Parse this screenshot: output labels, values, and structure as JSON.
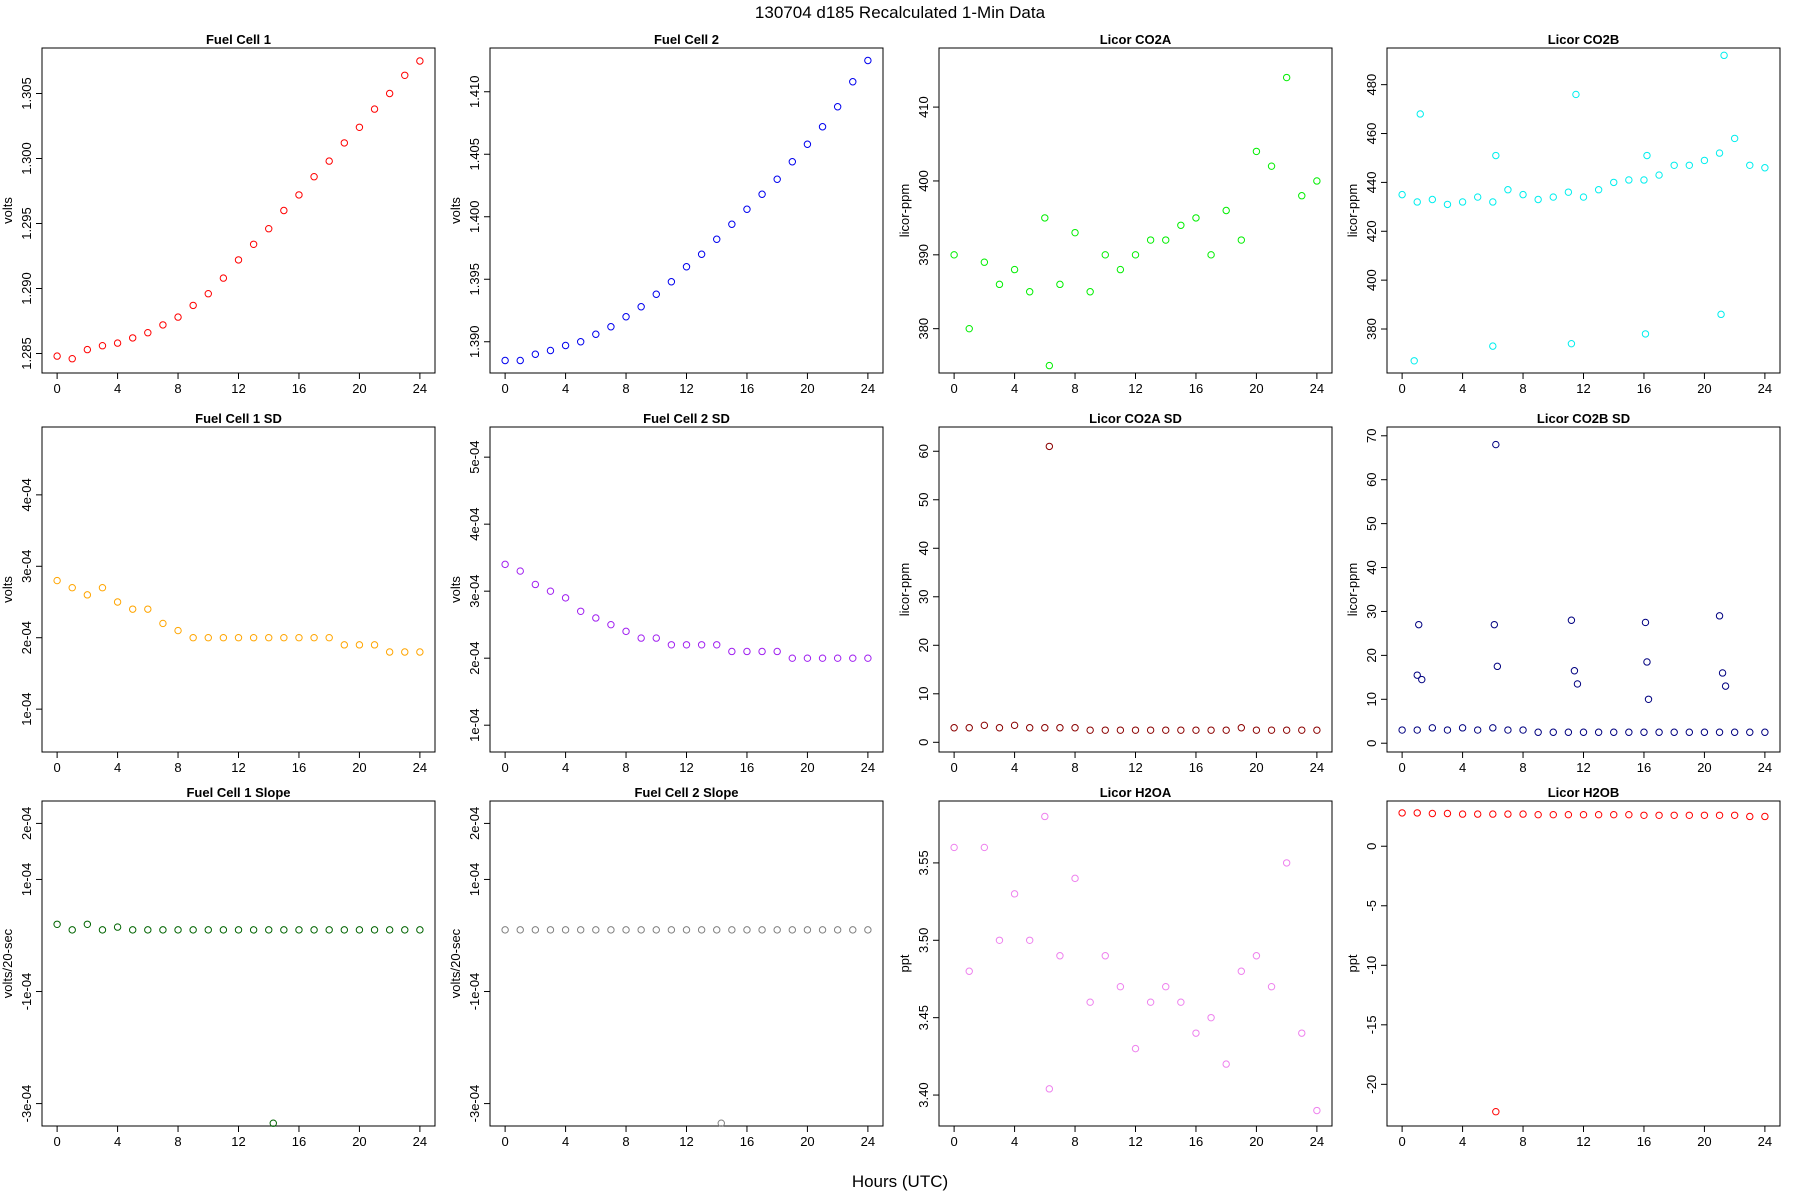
{
  "figure": {
    "title": "130704   d185   Recalculated 1-Min Data",
    "xlabel": "Hours (UTC)"
  },
  "chart_data": [
    {
      "type": "scatter",
      "title": "Fuel Cell 1",
      "ylabel": "volts",
      "color": "#ff0000",
      "xlim": [
        -1,
        25
      ],
      "ylim": [
        1.2835,
        1.3085
      ],
      "xticks": [
        0,
        4,
        8,
        12,
        16,
        20,
        24
      ],
      "xtick_labels": [
        "0",
        "4",
        "8",
        "12",
        "16",
        "20",
        "24"
      ],
      "yticks": [
        1.285,
        1.29,
        1.295,
        1.3,
        1.305
      ],
      "ytick_labels": [
        "1.285",
        "1.290",
        "1.295",
        "1.300",
        "1.305"
      ],
      "x": [
        0,
        1,
        2,
        3,
        4,
        5,
        6,
        7,
        8,
        9,
        10,
        11,
        12,
        13,
        14,
        15,
        16,
        17,
        18,
        19,
        20,
        21,
        22,
        23,
        24
      ],
      "y": [
        1.2848,
        1.2846,
        1.2853,
        1.2856,
        1.2858,
        1.2862,
        1.2866,
        1.2872,
        1.2878,
        1.2887,
        1.2896,
        1.2908,
        1.2922,
        1.2934,
        1.2946,
        1.296,
        1.2972,
        1.2986,
        1.2998,
        1.3012,
        1.3024,
        1.3038,
        1.305,
        1.3064,
        1.3075
      ]
    },
    {
      "type": "scatter",
      "title": "Fuel Cell 2",
      "ylabel": "volts",
      "color": "#0000ee",
      "xlim": [
        -1,
        25
      ],
      "ylim": [
        1.3875,
        1.4135
      ],
      "xticks": [
        0,
        4,
        8,
        12,
        16,
        20,
        24
      ],
      "xtick_labels": [
        "0",
        "4",
        "8",
        "12",
        "16",
        "20",
        "24"
      ],
      "yticks": [
        1.39,
        1.395,
        1.4,
        1.405,
        1.41
      ],
      "ytick_labels": [
        "1.390",
        "1.395",
        "1.400",
        "1.405",
        "1.410"
      ],
      "x": [
        0,
        1,
        2,
        3,
        4,
        5,
        6,
        7,
        8,
        9,
        10,
        11,
        12,
        13,
        14,
        15,
        16,
        17,
        18,
        19,
        20,
        21,
        22,
        23,
        24
      ],
      "y": [
        1.3885,
        1.3885,
        1.389,
        1.3893,
        1.3897,
        1.39,
        1.3906,
        1.3912,
        1.392,
        1.3928,
        1.3938,
        1.3948,
        1.396,
        1.397,
        1.3982,
        1.3994,
        1.4006,
        1.4018,
        1.403,
        1.4044,
        1.4058,
        1.4072,
        1.4088,
        1.4108,
        1.4125
      ]
    },
    {
      "type": "scatter",
      "title": "Licor CO2A",
      "ylabel": "licor-ppm",
      "color": "#00ee00",
      "xlim": [
        -1,
        25
      ],
      "ylim": [
        374,
        418
      ],
      "xticks": [
        0,
        4,
        8,
        12,
        16,
        20,
        24
      ],
      "xtick_labels": [
        "0",
        "4",
        "8",
        "12",
        "16",
        "20",
        "24"
      ],
      "yticks": [
        380,
        390,
        400,
        410
      ],
      "ytick_labels": [
        "380",
        "390",
        "400",
        "410"
      ],
      "x": [
        0,
        1,
        2,
        3,
        4,
        5,
        6,
        7,
        8,
        9,
        10,
        11,
        12,
        13,
        14,
        15,
        16,
        17,
        18,
        19,
        20,
        21,
        22,
        23,
        24,
        6.3
      ],
      "y": [
        390,
        380,
        389,
        386,
        388,
        385,
        395,
        386,
        393,
        385,
        390,
        388,
        390,
        392,
        392,
        394,
        395,
        390,
        396,
        392,
        404,
        402,
        414,
        398,
        400,
        375
      ]
    },
    {
      "type": "scatter",
      "title": "Licor CO2B",
      "ylabel": "licor-ppm",
      "color": "#00eeee",
      "xlim": [
        -1,
        25
      ],
      "ylim": [
        362,
        495
      ],
      "xticks": [
        0,
        4,
        8,
        12,
        16,
        20,
        24
      ],
      "xtick_labels": [
        "0",
        "4",
        "8",
        "12",
        "16",
        "20",
        "24"
      ],
      "yticks": [
        380,
        400,
        420,
        440,
        460,
        480
      ],
      "ytick_labels": [
        "380",
        "400",
        "420",
        "440",
        "460",
        "480"
      ],
      "x": [
        0,
        1,
        2,
        3,
        4,
        5,
        6,
        7,
        8,
        9,
        10,
        11,
        12,
        13,
        14,
        15,
        16,
        17,
        18,
        19,
        20,
        21,
        22,
        23,
        24,
        0.8,
        1.2,
        6.0,
        6.2,
        11.2,
        11.5,
        16.1,
        16.2,
        21.1,
        21.3
      ],
      "y": [
        435,
        432,
        433,
        431,
        432,
        434,
        432,
        437,
        435,
        433,
        434,
        436,
        434,
        437,
        440,
        441,
        441,
        443,
        447,
        447,
        449,
        452,
        458,
        447,
        446,
        367,
        468,
        373,
        451,
        374,
        476,
        378,
        451,
        386,
        492
      ]
    },
    {
      "type": "scatter",
      "title": "Fuel Cell 1 SD",
      "ylabel": "volts",
      "color": "#ffa500",
      "xlim": [
        -1,
        25
      ],
      "ylim": [
        4e-05,
        0.000495
      ],
      "xticks": [
        0,
        4,
        8,
        12,
        16,
        20,
        24
      ],
      "xtick_labels": [
        "0",
        "4",
        "8",
        "12",
        "16",
        "20",
        "24"
      ],
      "yticks": [
        0.0001,
        0.0002,
        0.0003,
        0.0004
      ],
      "ytick_labels": [
        "1e-04",
        "2e-04",
        "3e-04",
        "4e-04"
      ],
      "x": [
        0,
        1,
        2,
        3,
        4,
        5,
        6,
        7,
        8,
        9,
        10,
        11,
        12,
        13,
        14,
        15,
        16,
        17,
        18,
        19,
        20,
        21,
        22,
        23,
        24
      ],
      "y": [
        0.00028,
        0.00027,
        0.00026,
        0.00027,
        0.00025,
        0.00024,
        0.00024,
        0.00022,
        0.00021,
        0.0002,
        0.0002,
        0.0002,
        0.0002,
        0.0002,
        0.0002,
        0.0002,
        0.0002,
        0.0002,
        0.0002,
        0.00019,
        0.00019,
        0.00019,
        0.00018,
        0.00018,
        0.00018
      ]
    },
    {
      "type": "scatter",
      "title": "Fuel Cell 2 SD",
      "ylabel": "volts",
      "color": "#a020f0",
      "xlim": [
        -1,
        25
      ],
      "ylim": [
        6e-05,
        0.000545
      ],
      "xticks": [
        0,
        4,
        8,
        12,
        16,
        20,
        24
      ],
      "xtick_labels": [
        "0",
        "4",
        "8",
        "12",
        "16",
        "20",
        "24"
      ],
      "yticks": [
        0.0001,
        0.0002,
        0.0003,
        0.0004,
        0.0005
      ],
      "ytick_labels": [
        "1e-04",
        "2e-04",
        "3e-04",
        "4e-04",
        "5e-04"
      ],
      "x": [
        0,
        1,
        2,
        3,
        4,
        5,
        6,
        7,
        8,
        9,
        10,
        11,
        12,
        13,
        14,
        15,
        16,
        17,
        18,
        19,
        20,
        21,
        22,
        23,
        24
      ],
      "y": [
        0.00034,
        0.00033,
        0.00031,
        0.0003,
        0.00029,
        0.00027,
        0.00026,
        0.00025,
        0.00024,
        0.00023,
        0.00023,
        0.00022,
        0.00022,
        0.00022,
        0.00022,
        0.00021,
        0.00021,
        0.00021,
        0.00021,
        0.0002,
        0.0002,
        0.0002,
        0.0002,
        0.0002,
        0.0002
      ]
    },
    {
      "type": "scatter",
      "title": "Licor CO2A SD",
      "ylabel": "licor-ppm",
      "color": "#8b0000",
      "xlim": [
        -1,
        25
      ],
      "ylim": [
        -2,
        65
      ],
      "xticks": [
        0,
        4,
        8,
        12,
        16,
        20,
        24
      ],
      "xtick_labels": [
        "0",
        "4",
        "8",
        "12",
        "16",
        "20",
        "24"
      ],
      "yticks": [
        0,
        10,
        20,
        30,
        40,
        50,
        60
      ],
      "ytick_labels": [
        "0",
        "10",
        "20",
        "30",
        "40",
        "50",
        "60"
      ],
      "x": [
        0,
        1,
        2,
        3,
        4,
        5,
        6,
        7,
        8,
        9,
        10,
        11,
        12,
        13,
        14,
        15,
        16,
        17,
        18,
        19,
        20,
        21,
        22,
        23,
        24,
        6.3
      ],
      "y": [
        3,
        3,
        3.5,
        3,
        3.5,
        3,
        3,
        3,
        3,
        2.5,
        2.5,
        2.5,
        2.5,
        2.5,
        2.5,
        2.5,
        2.5,
        2.5,
        2.5,
        3,
        2.5,
        2.5,
        2.5,
        2.5,
        2.5,
        61
      ]
    },
    {
      "type": "scatter",
      "title": "Licor CO2B SD",
      "ylabel": "licor-ppm",
      "color": "#000080",
      "xlim": [
        -1,
        25
      ],
      "ylim": [
        -2,
        72
      ],
      "xticks": [
        0,
        4,
        8,
        12,
        16,
        20,
        24
      ],
      "xtick_labels": [
        "0",
        "4",
        "8",
        "12",
        "16",
        "20",
        "24"
      ],
      "yticks": [
        0,
        10,
        20,
        30,
        40,
        50,
        60,
        70
      ],
      "ytick_labels": [
        "0",
        "10",
        "20",
        "30",
        "40",
        "50",
        "60",
        "70"
      ],
      "x": [
        0,
        1,
        2,
        3,
        4,
        5,
        6,
        7,
        8,
        9,
        10,
        11,
        12,
        13,
        14,
        15,
        16,
        17,
        18,
        19,
        20,
        21,
        22,
        23,
        24,
        1.0,
        1.1,
        1.3,
        6.1,
        6.2,
        6.3,
        11.2,
        11.4,
        11.6,
        16.1,
        16.2,
        16.3,
        21.0,
        21.2,
        21.4
      ],
      "y": [
        3,
        3,
        3.5,
        3,
        3.5,
        3,
        3.5,
        3,
        3,
        2.5,
        2.5,
        2.5,
        2.5,
        2.5,
        2.5,
        2.5,
        2.5,
        2.5,
        2.5,
        2.5,
        2.5,
        2.5,
        2.5,
        2.5,
        2.5,
        15.5,
        27,
        14.5,
        27,
        68,
        17.5,
        28,
        16.5,
        13.5,
        27.5,
        18.5,
        10,
        29,
        16,
        13
      ]
    },
    {
      "type": "scatter",
      "title": "Fuel Cell 1 Slope",
      "ylabel": "volts/20-sec",
      "color": "#006400",
      "xlim": [
        -1,
        25
      ],
      "ylim": [
        -0.00034,
        0.00024
      ],
      "xticks": [
        0,
        4,
        8,
        12,
        16,
        20,
        24
      ],
      "xtick_labels": [
        "0",
        "4",
        "8",
        "12",
        "16",
        "20",
        "24"
      ],
      "yticks": [
        -0.0003,
        -0.0001,
        0.0001,
        0.0002
      ],
      "ytick_labels": [
        "-3e-04",
        "-1e-04",
        "1e-04",
        "2e-04"
      ],
      "x": [
        0,
        1,
        2,
        3,
        4,
        5,
        6,
        7,
        8,
        9,
        10,
        11,
        12,
        13,
        14,
        15,
        16,
        17,
        18,
        19,
        20,
        21,
        22,
        23,
        24,
        14.3
      ],
      "y": [
        2e-05,
        1e-05,
        2e-05,
        1e-05,
        1.5e-05,
        1e-05,
        1e-05,
        1e-05,
        1e-05,
        1e-05,
        1e-05,
        1e-05,
        1e-05,
        1e-05,
        1e-05,
        1e-05,
        1e-05,
        1e-05,
        1e-05,
        1e-05,
        1e-05,
        1e-05,
        1e-05,
        1e-05,
        1e-05,
        -0.000335
      ]
    },
    {
      "type": "scatter",
      "title": "Fuel Cell 2 Slope",
      "ylabel": "volts/20-sec",
      "color": "#808080",
      "xlim": [
        -1,
        25
      ],
      "ylim": [
        -0.00034,
        0.00024
      ],
      "xticks": [
        0,
        4,
        8,
        12,
        16,
        20,
        24
      ],
      "xtick_labels": [
        "0",
        "4",
        "8",
        "12",
        "16",
        "20",
        "24"
      ],
      "yticks": [
        -0.0003,
        -0.0001,
        0.0001,
        0.0002
      ],
      "ytick_labels": [
        "-3e-04",
        "-1e-04",
        "1e-04",
        "2e-04"
      ],
      "x": [
        0,
        1,
        2,
        3,
        4,
        5,
        6,
        7,
        8,
        9,
        10,
        11,
        12,
        13,
        14,
        15,
        16,
        17,
        18,
        19,
        20,
        21,
        22,
        23,
        24,
        14.3
      ],
      "y": [
        1e-05,
        1e-05,
        1e-05,
        1e-05,
        1e-05,
        1e-05,
        1e-05,
        1e-05,
        1e-05,
        1e-05,
        1e-05,
        1e-05,
        1e-05,
        1e-05,
        1e-05,
        1e-05,
        1e-05,
        1e-05,
        1e-05,
        1e-05,
        1e-05,
        1e-05,
        1e-05,
        1e-05,
        1e-05,
        -0.000335
      ]
    },
    {
      "type": "scatter",
      "title": "Licor H2OA",
      "ylabel": "ppt",
      "color": "#ee82ee",
      "xlim": [
        -1,
        25
      ],
      "ylim": [
        3.38,
        3.59
      ],
      "xticks": [
        0,
        4,
        8,
        12,
        16,
        20,
        24
      ],
      "xtick_labels": [
        "0",
        "4",
        "8",
        "12",
        "16",
        "20",
        "24"
      ],
      "yticks": [
        3.4,
        3.45,
        3.5,
        3.55
      ],
      "ytick_labels": [
        "3.40",
        "3.45",
        "3.50",
        "3.55"
      ],
      "x": [
        0,
        1,
        2,
        3,
        4,
        5,
        6,
        7,
        8,
        9,
        10,
        11,
        12,
        13,
        14,
        15,
        16,
        17,
        18,
        19,
        20,
        21,
        22,
        23,
        24,
        6.3
      ],
      "y": [
        3.56,
        3.48,
        3.56,
        3.5,
        3.53,
        3.5,
        3.58,
        3.49,
        3.54,
        3.46,
        3.49,
        3.47,
        3.43,
        3.46,
        3.47,
        3.46,
        3.44,
        3.45,
        3.42,
        3.48,
        3.49,
        3.47,
        3.55,
        3.44,
        3.39,
        3.404
      ]
    },
    {
      "type": "scatter",
      "title": "Licor H2OB",
      "ylabel": "ppt",
      "color": "#ff0000",
      "xlim": [
        -1,
        25
      ],
      "ylim": [
        -23.5,
        3.8
      ],
      "xticks": [
        0,
        4,
        8,
        12,
        16,
        20,
        24
      ],
      "xtick_labels": [
        "0",
        "4",
        "8",
        "12",
        "16",
        "20",
        "24"
      ],
      "yticks": [
        -20,
        -15,
        -10,
        -5,
        0
      ],
      "ytick_labels": [
        "-20",
        "-15",
        "-10",
        "-5",
        "0"
      ],
      "x": [
        0,
        1,
        2,
        3,
        4,
        5,
        6,
        7,
        8,
        9,
        10,
        11,
        12,
        13,
        14,
        15,
        16,
        17,
        18,
        19,
        20,
        21,
        22,
        23,
        24,
        6.2
      ],
      "y": [
        2.8,
        2.8,
        2.75,
        2.75,
        2.7,
        2.7,
        2.7,
        2.7,
        2.7,
        2.65,
        2.65,
        2.65,
        2.65,
        2.65,
        2.65,
        2.65,
        2.6,
        2.6,
        2.6,
        2.6,
        2.6,
        2.6,
        2.6,
        2.5,
        2.5,
        -22.3
      ]
    }
  ]
}
